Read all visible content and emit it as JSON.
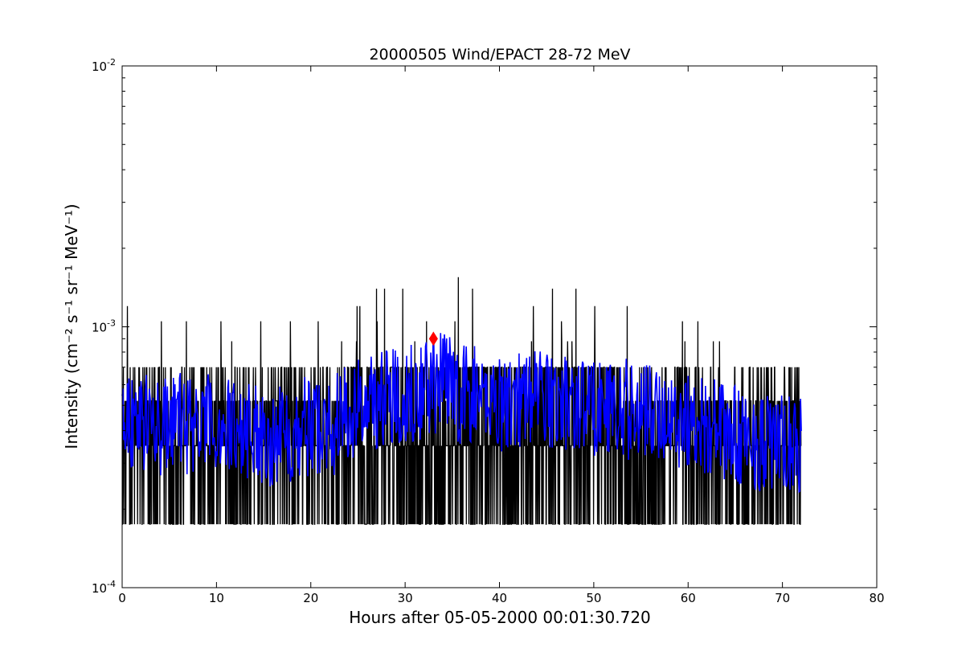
{
  "chart_data": {
    "type": "line",
    "title": "20000505 Wind/EPACT 28-72 MeV",
    "xlabel": "Hours after 05-05-2000 00:01:30.720",
    "ylabel": "Intensity (cm⁻² s⁻¹ sr⁻¹ MeV⁻¹)",
    "xlim": [
      0,
      80
    ],
    "ylim": [
      0.0001,
      0.01
    ],
    "yscale": "log",
    "grid": false,
    "x_ticks": [
      0,
      10,
      20,
      30,
      40,
      50,
      60,
      70,
      80
    ],
    "x_tick_labels": [
      "0",
      "10",
      "20",
      "30",
      "40",
      "50",
      "60",
      "70",
      "80"
    ],
    "y_ticks": [
      0.0001,
      0.001,
      0.01
    ],
    "y_tick_labels": [
      {
        "base": "10",
        "exp": "-4"
      },
      {
        "base": "10",
        "exp": "-3"
      },
      {
        "base": "10",
        "exp": "-2"
      }
    ],
    "raw_series": {
      "color": "#000000",
      "x_range": [
        0,
        72
      ],
      "levels": [
        0.000175,
        0.00035,
        0.00052,
        0.0007,
        0.00088,
        0.00105,
        0.0012,
        0.0014,
        0.00155
      ],
      "envelope": [
        {
          "x": 0,
          "typical": 0.00045,
          "peak": 0.0012
        },
        {
          "x": 10,
          "typical": 0.00043,
          "peak": 0.0013
        },
        {
          "x": 20,
          "typical": 0.00044,
          "peak": 0.0011
        },
        {
          "x": 30,
          "typical": 0.0006,
          "peak": 0.0016
        },
        {
          "x": 40,
          "typical": 0.00058,
          "peak": 0.0016
        },
        {
          "x": 50,
          "typical": 0.00052,
          "peak": 0.0014
        },
        {
          "x": 60,
          "typical": 0.00045,
          "peak": 0.0011
        },
        {
          "x": 72,
          "typical": 0.0004,
          "peak": 0.0007
        }
      ]
    },
    "smoothed_series": {
      "color": "#0000ff",
      "x": [
        0,
        2,
        4,
        6,
        8,
        10,
        12,
        14,
        16,
        18,
        20,
        22,
        24,
        26,
        28,
        30,
        32,
        33,
        34,
        36,
        38,
        40,
        42,
        44,
        46,
        48,
        50,
        52,
        54,
        56,
        58,
        60,
        62,
        64,
        66,
        68,
        70,
        72
      ],
      "y": [
        0.00045,
        0.00044,
        0.00041,
        0.00043,
        0.00042,
        0.00042,
        0.00041,
        0.0004,
        0.00038,
        0.0004,
        0.00042,
        0.00041,
        0.00046,
        0.00052,
        0.00054,
        0.00056,
        0.00058,
        0.0006,
        0.00062,
        0.00055,
        0.00054,
        0.00052,
        0.00053,
        0.00055,
        0.00052,
        0.00051,
        0.0005,
        0.00049,
        0.00048,
        0.00047,
        0.00045,
        0.00044,
        0.00042,
        0.00039,
        0.00037,
        0.00036,
        0.00035,
        0.00034
      ]
    },
    "marker": {
      "x": 33,
      "y": 0.0009,
      "color": "#ff0000",
      "shape": "diamond"
    }
  }
}
